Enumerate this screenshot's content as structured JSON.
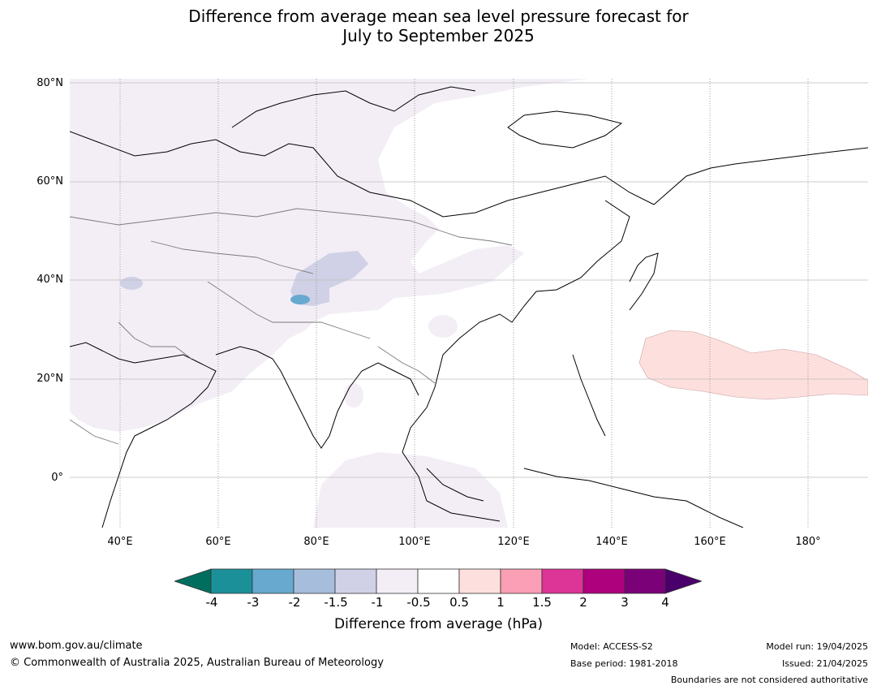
{
  "title_line1": "Difference from average mean sea level pressure forecast for",
  "title_line2": "July to September 2025",
  "lat_labels": [
    "80°N",
    "60°N",
    "40°N",
    "20°N",
    "0°"
  ],
  "lon_labels": [
    "40°E",
    "60°E",
    "80°E",
    "100°E",
    "120°E",
    "140°E",
    "160°E",
    "180°"
  ],
  "colorbar": {
    "ticks": [
      "-4",
      "-3",
      "-2",
      "-1.5",
      "-1",
      "-0.5",
      "0.5",
      "1",
      "1.5",
      "2",
      "3",
      "4"
    ],
    "colors": [
      "#006e5e",
      "#1c9099",
      "#67a9cf",
      "#a6bddb",
      "#d0d1e6",
      "#f3eef6",
      "#ffffff",
      "#fde0dd",
      "#fa9fb5",
      "#dd3497",
      "#ae017e",
      "#7a0177",
      "#49006a"
    ],
    "label": "Difference from average (hPa)"
  },
  "footer": {
    "website": "www.bom.gov.au/climate",
    "copyright": "© Commonwealth of Australia 2025, Australian Bureau of Meteorology",
    "model": "Model: ACCESS-S2",
    "base_period": "Base period: 1981-2018",
    "model_run": "Model run: 19/04/2025",
    "issued": "Issued: 21/04/2025",
    "disclaimer": "Boundaries are not considered authoritative"
  }
}
